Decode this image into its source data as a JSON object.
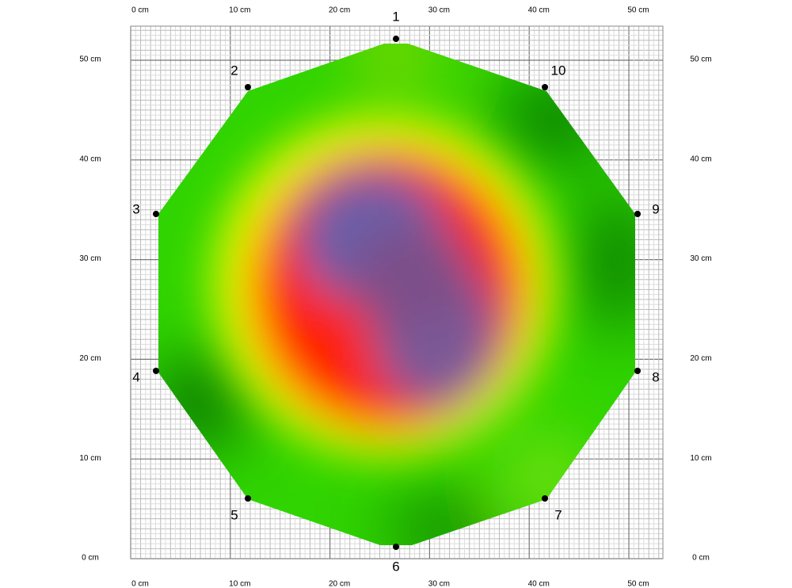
{
  "x_axis_labels": [
    "0 cm",
    "10 cm",
    "20 cm",
    "30 cm",
    "40 cm",
    "50 cm"
  ],
  "y_axis_labels": [
    "0 cm",
    "10 cm",
    "20 cm",
    "30 cm",
    "40 cm",
    "50 cm"
  ],
  "points": [
    "1",
    "2",
    "3",
    "4",
    "5",
    "6",
    "7",
    "8",
    "9",
    "10"
  ]
}
